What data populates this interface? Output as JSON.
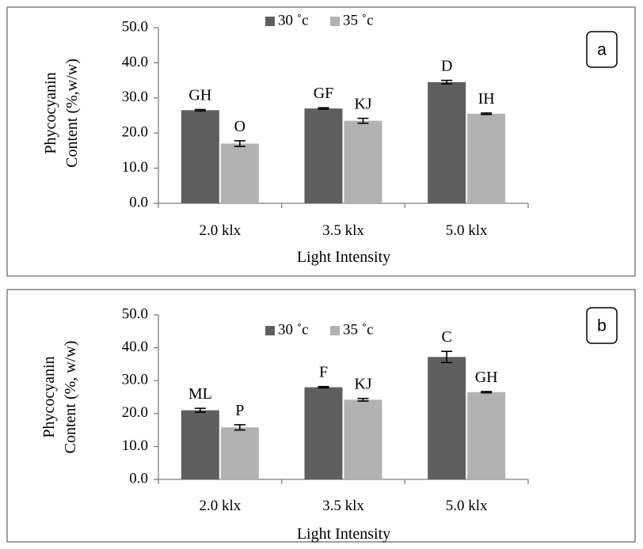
{
  "chart_data": [
    {
      "type": "bar",
      "panel_label": "a",
      "categories": [
        "2.0 klx",
        "3.5 klx",
        "5.0 klx"
      ],
      "xlabel": "Light Intensity",
      "ylabel": [
        "Phycocyanin",
        "Content (%,w/w)"
      ],
      "ylim": [
        0,
        50
      ],
      "yticks": [
        "0.0",
        "10.0",
        "20.0",
        "30.0",
        "40.0",
        "50.0"
      ],
      "grid": false,
      "legend_position": "top-center",
      "series": [
        {
          "name": "30 ˚c",
          "color": "#5f5f5f",
          "values": [
            26.5,
            27.0,
            34.5
          ],
          "errors": [
            0.2,
            0.2,
            0.5
          ],
          "labels": [
            "GH",
            "GF",
            "D"
          ]
        },
        {
          "name": "35 ˚c",
          "color": "#b2b2b2",
          "values": [
            17.0,
            23.5,
            25.5
          ],
          "errors": [
            0.8,
            0.7,
            0.2
          ],
          "labels": [
            "O",
            "KJ",
            "IH"
          ]
        }
      ]
    },
    {
      "type": "bar",
      "panel_label": "b",
      "categories": [
        "2.0 klx",
        "3.5 klx",
        "5.0 klx"
      ],
      "xlabel": "Light Intensity",
      "ylabel": [
        "Phycocyanin",
        "Content (%, w/w)"
      ],
      "ylim": [
        0,
        50
      ],
      "yticks": [
        "0.0",
        "10.0",
        "20.0",
        "30.0",
        "40.0",
        "50.0"
      ],
      "grid": false,
      "legend_position": "top-center",
      "series": [
        {
          "name": "30 ˚c",
          "color": "#5f5f5f",
          "values": [
            21.0,
            28.0,
            37.2
          ],
          "errors": [
            0.6,
            0.2,
            1.7
          ],
          "labels": [
            "ML",
            "F",
            "C"
          ]
        },
        {
          "name": "35 ˚c",
          "color": "#b2b2b2",
          "values": [
            15.8,
            24.2,
            26.5
          ],
          "errors": [
            0.8,
            0.4,
            0.2
          ],
          "labels": [
            "P",
            "KJ",
            "GH"
          ]
        }
      ]
    }
  ]
}
